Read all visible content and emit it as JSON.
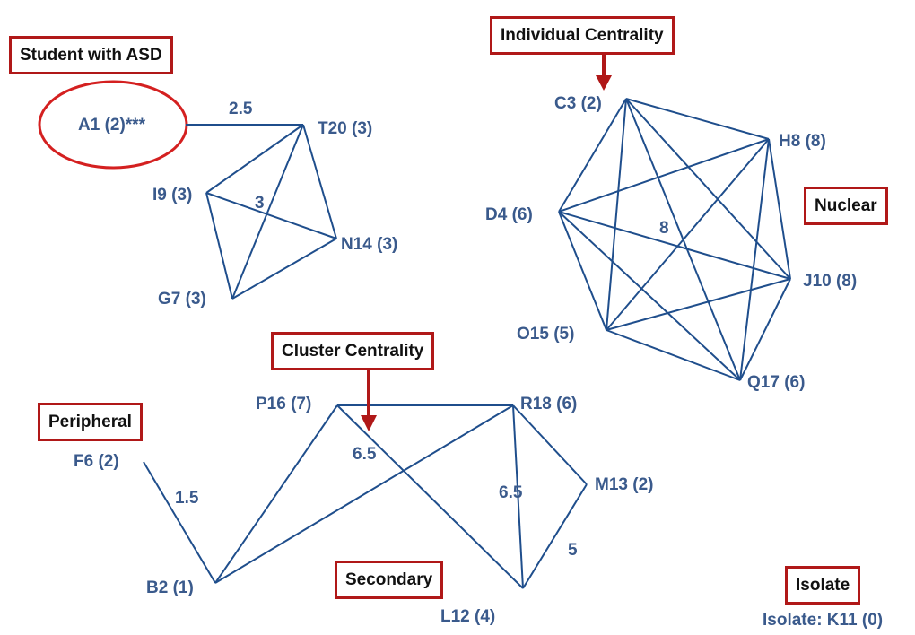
{
  "callouts": {
    "student_asd": "Student with ASD",
    "individual_centrality": "Individual Centrality",
    "nuclear": "Nuclear",
    "cluster_centrality": "Cluster Centrality",
    "peripheral": "Peripheral",
    "secondary": "Secondary",
    "isolate": "Isolate"
  },
  "nodes": {
    "A1": "A1 (2)***",
    "T20": "T20 (3)",
    "I9": "I9 (3)",
    "N14": "N14 (3)",
    "G7": "G7 (3)",
    "C3": "C3 (2)",
    "H8": "H8 (8)",
    "D4": "D4 (6)",
    "J10": "J10 (8)",
    "O15": "O15 (5)",
    "Q17": "Q17 (6)",
    "P16": "P16 (7)",
    "R18": "R18 (6)",
    "F6": "F6 (2)",
    "M13": "M13 (2)",
    "B2": "B2 (1)",
    "L12": "L12 (4)"
  },
  "weights": {
    "w_a1_t20": "2.5",
    "w_cluster_small": "3",
    "w_nuclear": "8",
    "w_p16_r18": "6.5",
    "w_r18_l12": "6.5",
    "w_f6_b2": "1.5",
    "w_m13_l12": "5"
  },
  "isolate_text": "Isolate: K11 (0)",
  "colors": {
    "edge": "#1f4e8c",
    "node_text": "#3a5a8c",
    "callout_border": "#b01818",
    "highlight_ring": "#d42020"
  }
}
